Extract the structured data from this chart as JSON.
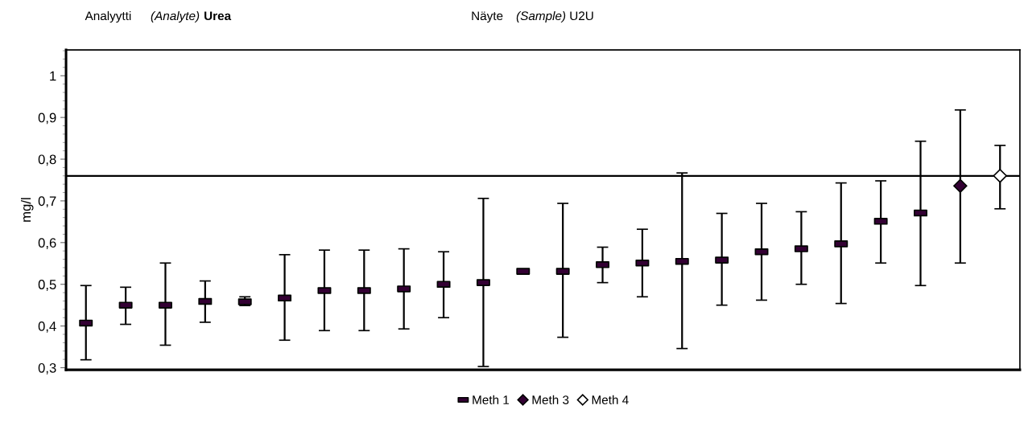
{
  "chart_data": {
    "type": "scatter",
    "annotations": [
      "Analyytti",
      "(Analyte)",
      "Urea",
      "Näyte",
      "(Sample)",
      "U2U"
    ],
    "ylabel": "mg/l",
    "categories": [
      null,
      null,
      null,
      null,
      null,
      null,
      null,
      null,
      null,
      null,
      null,
      null,
      null,
      null,
      null,
      null,
      null,
      null,
      null,
      null,
      null,
      null,
      null,
      null
    ],
    "series": [
      {
        "name": "Meth 1",
        "color": "#330033",
        "marker": "square",
        "values": [
          0.407,
          0.45,
          0.45,
          0.459,
          0.458,
          0.467,
          0.485,
          0.485,
          0.489,
          0.5,
          0.504,
          0.531,
          0.531,
          0.547,
          0.551,
          0.555,
          0.558,
          0.578,
          0.585,
          0.597,
          0.651,
          0.671,
          null,
          null
        ],
        "errors": [
          [
            0.319,
            0.497
          ],
          [
            0.404,
            0.493
          ],
          [
            0.354,
            0.551
          ],
          [
            0.409,
            0.508
          ],
          [
            0.449,
            0.47
          ],
          [
            0.366,
            0.571
          ],
          [
            0.389,
            0.582
          ],
          [
            0.389,
            0.582
          ],
          [
            0.393,
            0.585
          ],
          [
            0.42,
            0.578
          ],
          [
            0.303,
            0.706
          ],
          null,
          [
            0.373,
            0.694
          ],
          [
            0.504,
            0.589
          ],
          [
            0.47,
            0.632
          ],
          [
            0.346,
            0.767
          ],
          [
            0.45,
            0.67
          ],
          [
            0.462,
            0.694
          ],
          [
            0.5,
            0.674
          ],
          [
            0.454,
            0.743
          ],
          [
            0.551,
            0.748
          ],
          [
            0.497,
            0.843
          ],
          null,
          null
        ]
      },
      {
        "name": "Meth 3",
        "color": "#330033",
        "marker": "diamond",
        "values": [
          null,
          null,
          null,
          null,
          null,
          null,
          null,
          null,
          null,
          null,
          null,
          null,
          null,
          null,
          null,
          null,
          null,
          null,
          null,
          null,
          null,
          null,
          0.736,
          null
        ],
        "errors": [
          null,
          null,
          null,
          null,
          null,
          null,
          null,
          null,
          null,
          null,
          null,
          null,
          null,
          null,
          null,
          null,
          null,
          null,
          null,
          null,
          null,
          null,
          [
            0.551,
            0.918
          ],
          null
        ]
      },
      {
        "name": "Meth 4",
        "color": "#ffffff",
        "marker": "diamond",
        "values": [
          null,
          null,
          null,
          null,
          null,
          null,
          null,
          null,
          null,
          null,
          null,
          null,
          null,
          null,
          null,
          null,
          null,
          null,
          null,
          null,
          null,
          null,
          null,
          0.76
        ],
        "errors": [
          null,
          null,
          null,
          null,
          null,
          null,
          null,
          null,
          null,
          null,
          null,
          null,
          null,
          null,
          null,
          null,
          null,
          null,
          null,
          null,
          null,
          null,
          null,
          [
            0.681,
            0.833
          ]
        ]
      }
    ],
    "ref_lines": [
      {
        "axis": "y",
        "value": 0.76,
        "color": "#000000"
      }
    ],
    "ylim": [
      0.295,
      1.062
    ],
    "yticks": [
      {
        "value": 0.3,
        "label": "0,3"
      },
      {
        "value": 0.4,
        "label": "0,4"
      },
      {
        "value": 0.5,
        "label": "0,5"
      },
      {
        "value": 0.6,
        "label": "0,6"
      },
      {
        "value": 0.7,
        "label": "0,7"
      },
      {
        "value": 0.8,
        "label": "0,8"
      },
      {
        "value": 0.9,
        "label": "0,9"
      },
      {
        "value": 1,
        "label": "1"
      }
    ],
    "grid": false,
    "legend": "bottom"
  }
}
